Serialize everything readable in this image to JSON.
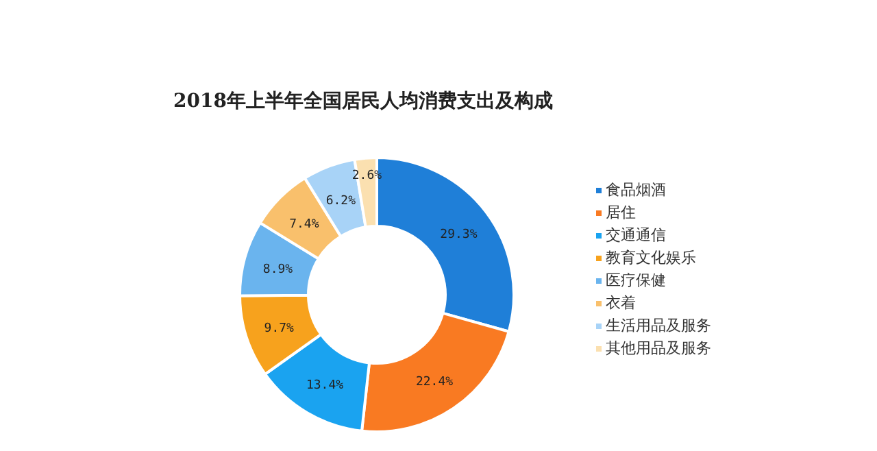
{
  "chart_data": {
    "type": "donut",
    "title": "2018年上半年全国居民人均消费支出及构成",
    "categories": [
      "食品烟酒",
      "居住",
      "交通通信",
      "教育文化娱乐",
      "医疗保健",
      "衣着",
      "生活用品及服务",
      "其他用品及服务"
    ],
    "values": [
      29.3,
      22.4,
      13.4,
      9.7,
      8.9,
      7.4,
      6.2,
      2.6
    ],
    "value_labels": [
      "29.3%",
      "22.4%",
      "13.4%",
      "9.7%",
      "8.9%",
      "7.4%",
      "6.2%",
      "2.6%"
    ],
    "colors": [
      "#1f7fd8",
      "#f97a22",
      "#1aa3f0",
      "#f7a21d",
      "#6ab4ee",
      "#f9c06c",
      "#a8d3f7",
      "#fbe0b0"
    ],
    "legend": "right"
  }
}
